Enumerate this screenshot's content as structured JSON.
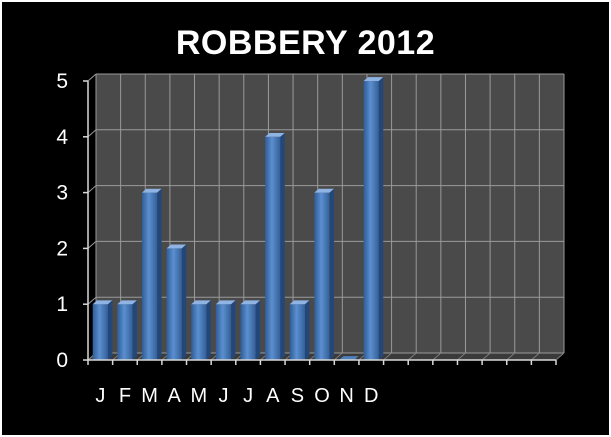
{
  "chart_data": {
    "type": "bar",
    "title": "ROBBERY 2012",
    "categories": [
      "J",
      "F",
      "M",
      "A",
      "M",
      "J",
      "J",
      "A",
      "S",
      "O",
      "N",
      "D"
    ],
    "values": [
      1,
      1,
      3,
      2,
      1,
      1,
      1,
      4,
      1,
      3,
      0,
      5
    ],
    "ylim": [
      0,
      5
    ],
    "yticks": [
      "0",
      "1",
      "2",
      "3",
      "4",
      "5"
    ],
    "xlabel": "",
    "ylabel": "",
    "grid": true,
    "legend": "none",
    "bar_color": "#4f81bd",
    "background_color": "#000000",
    "plot_wall_color": "#4a4a4a",
    "text_color": "#ffffff"
  }
}
